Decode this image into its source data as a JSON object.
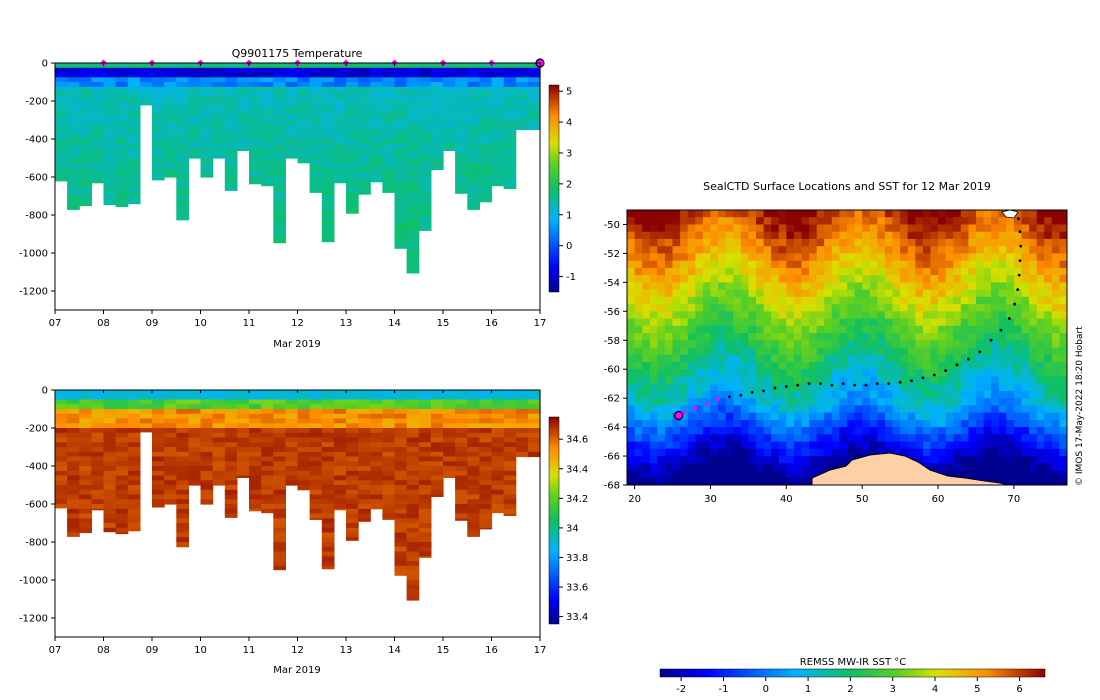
{
  "chart_data": [
    {
      "type": "heatmap",
      "title": "Q9901175  Temperature",
      "xlabel": "Mar 2019",
      "ylabel": "",
      "x_ticks": [
        "07",
        "08",
        "09",
        "10",
        "11",
        "12",
        "13",
        "14",
        "15",
        "16",
        "17"
      ],
      "y_ticks": [
        "0",
        "-200",
        "-400",
        "-600",
        "-800",
        "-1000",
        "-1200"
      ],
      "y_tick_values": [
        0,
        -200,
        -400,
        -600,
        -800,
        -1000,
        -1200
      ],
      "ylim": [
        -1300,
        0
      ],
      "xlim": [
        7,
        17
      ],
      "colorbar_ticks": [
        "5",
        "4",
        "3",
        "2",
        "1",
        "0",
        "-1"
      ],
      "colorbar_values": [
        5,
        4,
        3,
        2,
        1,
        0,
        -1
      ],
      "colorbar_range": [
        -1.5,
        5.2
      ],
      "surface_markers": [
        8,
        9,
        10,
        11,
        12,
        13,
        14,
        15,
        16
      ],
      "last_marker": 17,
      "profile_times": [
        7.0,
        7.25,
        7.5,
        7.75,
        8.0,
        8.25,
        8.5,
        8.75,
        9.0,
        9.25,
        9.5,
        9.75,
        10.0,
        10.25,
        10.5,
        10.75,
        11.0,
        11.25,
        11.5,
        11.75,
        12.0,
        12.25,
        12.5,
        12.75,
        13.0,
        13.25,
        13.5,
        13.75,
        14.0,
        14.25,
        14.5,
        14.75,
        15.0,
        15.25,
        15.5,
        15.75,
        16.0,
        16.25,
        16.5,
        16.75,
        17.0
      ],
      "profile_max_depth": [
        -620,
        -770,
        -750,
        -630,
        -745,
        -755,
        -740,
        -220,
        -615,
        -600,
        -825,
        -500,
        -600,
        -500,
        -670,
        -460,
        -635,
        -645,
        -945,
        -500,
        -525,
        -680,
        -940,
        -630,
        -790,
        -690,
        -625,
        -680,
        -975,
        -1105,
        -880,
        -560,
        -460,
        -685,
        -770,
        -730,
        -645,
        -660,
        -350,
        -350,
        -350
      ],
      "profile_value_scale": "temperature"
    },
    {
      "type": "heatmap",
      "title": "",
      "xlabel": "Mar 2019",
      "ylabel": "",
      "x_ticks": [
        "07",
        "08",
        "09",
        "10",
        "11",
        "12",
        "13",
        "14",
        "15",
        "16",
        "17"
      ],
      "y_ticks": [
        "0",
        "-200",
        "-400",
        "-600",
        "-800",
        "-1000",
        "-1200"
      ],
      "y_tick_values": [
        0,
        -200,
        -400,
        -600,
        -800,
        -1000,
        -1200
      ],
      "ylim": [
        -1300,
        0
      ],
      "xlim": [
        7,
        17
      ],
      "colorbar_ticks": [
        "34.6",
        "34.4",
        "34.2",
        "34",
        "33.8",
        "33.6",
        "33.4"
      ],
      "colorbar_values": [
        34.6,
        34.4,
        34.2,
        34.0,
        33.8,
        33.6,
        33.4
      ],
      "colorbar_range": [
        33.35,
        34.75
      ],
      "profile_value_scale": "salinity"
    },
    {
      "type": "heatmap",
      "title": "SealCTD Surface Locations and SST for 12 Mar 2019",
      "xlabel": "",
      "ylabel": "",
      "x_ticks": [
        "20",
        "30",
        "40",
        "50",
        "60",
        "70"
      ],
      "x_tick_values": [
        20,
        30,
        40,
        50,
        60,
        70
      ],
      "y_ticks": [
        "-50",
        "-52",
        "-54",
        "-56",
        "-58",
        "-60",
        "-62",
        "-64",
        "-66",
        "-68"
      ],
      "y_tick_values": [
        -50,
        -52,
        -54,
        -56,
        -58,
        -60,
        -62,
        -64,
        -66,
        -68
      ],
      "xlim": [
        19,
        77
      ],
      "ylim": [
        -68,
        -49
      ],
      "track_lon": [
        70.6,
        70.8,
        70.9,
        70.8,
        70.7,
        70.5,
        70.1,
        69.4,
        68.3,
        67.0,
        65.5,
        64.0,
        62.5,
        61.0,
        59.5,
        58.0,
        56.5,
        55.0,
        53.5,
        52.0,
        50.5,
        49.0,
        47.5,
        46.0,
        44.5,
        43.0,
        41.5,
        40.0,
        38.5,
        37.0,
        35.5,
        34.0,
        32.5,
        31.0,
        29.5,
        28.0,
        26.5,
        25.8
      ],
      "track_lat": [
        -49.6,
        -50.5,
        -51.5,
        -52.5,
        -53.5,
        -54.5,
        -55.5,
        -56.5,
        -57.3,
        -58.0,
        -58.8,
        -59.3,
        -59.7,
        -60.1,
        -60.4,
        -60.6,
        -60.8,
        -60.9,
        -61.0,
        -61.0,
        -61.1,
        -61.1,
        -61.0,
        -61.1,
        -61.0,
        -61.0,
        -61.1,
        -61.2,
        -61.3,
        -61.5,
        -61.6,
        -61.8,
        -61.9,
        -62.1,
        -62.4,
        -62.7,
        -63.0,
        -63.2
      ],
      "highlight_track_lon": [
        31.0,
        29.5,
        28.0,
        26.5
      ],
      "highlight_track_lat": [
        -62.1,
        -62.4,
        -62.7,
        -63.0
      ],
      "start_marker": {
        "lon": 25.8,
        "lat": -63.2
      },
      "side_label": "© IMOS 17-May-2022 18:20 Hobart"
    }
  ],
  "sst_colorbar": {
    "title": "REMSS MW-IR SST °C",
    "ticks": [
      "-2",
      "-1",
      "0",
      "1",
      "2",
      "3",
      "4",
      "5",
      "6"
    ],
    "tick_values": [
      -2,
      -1,
      0,
      1,
      2,
      3,
      4,
      5,
      6
    ],
    "range": [
      -2.5,
      6.6
    ]
  }
}
